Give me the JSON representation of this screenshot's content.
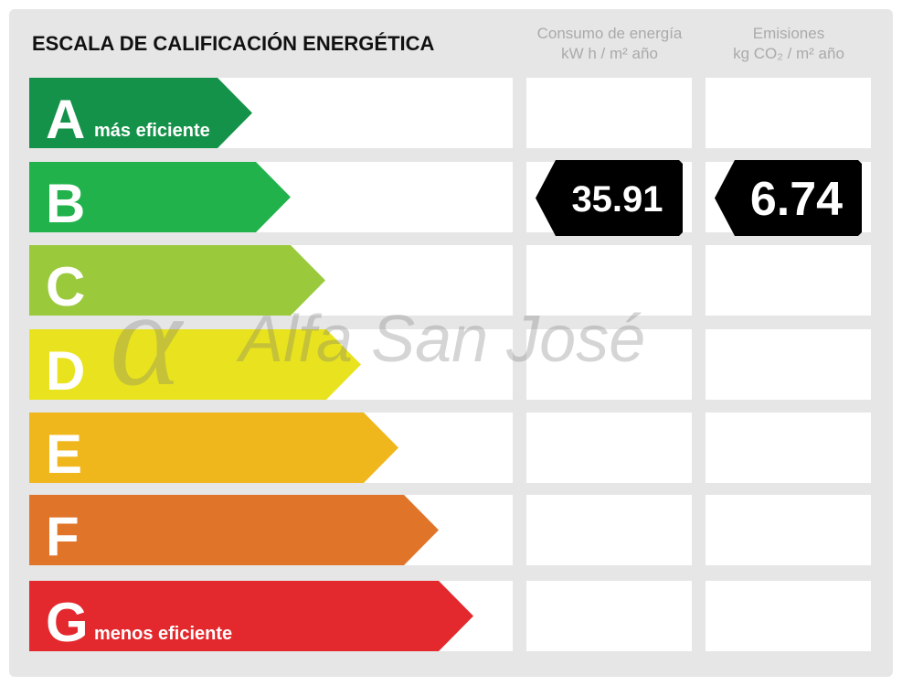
{
  "title": "ESCALA DE CALIFICACIÓN ENERGÉTICA",
  "columns": [
    {
      "line1": "Consumo de energía",
      "line2": "kW h / m² año"
    },
    {
      "line1": "Emisiones",
      "line2": "kg CO₂ / m² año"
    }
  ],
  "rows": [
    {
      "letter": "A",
      "note": "más eficiente",
      "color": "#15924a"
    },
    {
      "letter": "B",
      "color": "#21b24c",
      "energy": 35.91,
      "emissions": 6.74
    },
    {
      "letter": "C",
      "color": "#9aca3c"
    },
    {
      "letter": "D",
      "color": "#e8e31e"
    },
    {
      "letter": "E",
      "color": "#f0b71d"
    },
    {
      "letter": "F",
      "color": "#e07429"
    },
    {
      "letter": "G",
      "note": "menos eficiente",
      "color": "#e3292d"
    }
  ],
  "watermark": {
    "symbol": "α",
    "text": "Alfa San José"
  }
}
